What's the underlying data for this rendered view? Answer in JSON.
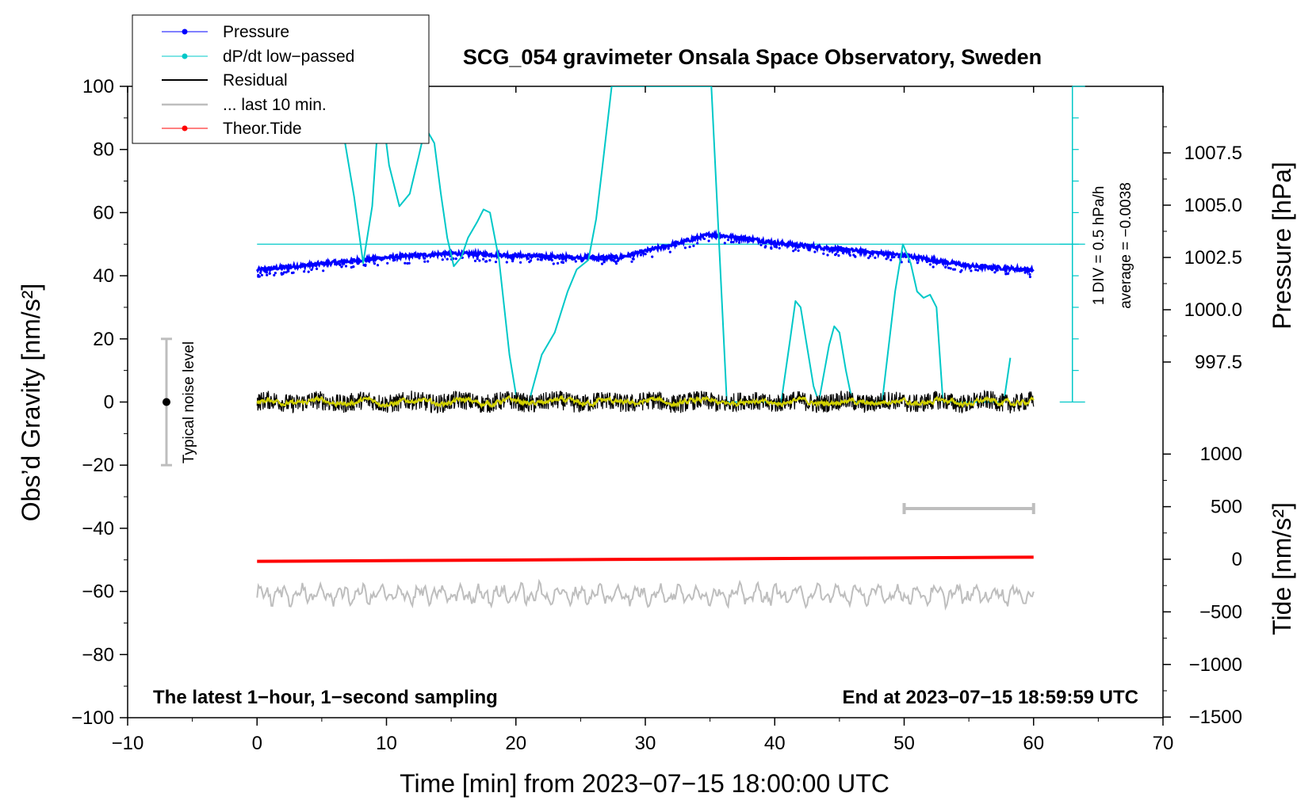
{
  "chart_data": {
    "type": "line",
    "title": "SCG_054 gravimeter Onsala Space Observatory, Sweden",
    "xlabel": "Time [min] from 2023−07−15 18:00:00 UTC",
    "ylabel_left": "Obs’d Gravity [nm/s²]",
    "ylabel_pressure": "Pressure [hPa]",
    "ylabel_tide": "Tide [nm/s²]",
    "xlim": [
      -10,
      70
    ],
    "ylim": [
      -100,
      100
    ],
    "x_ticks": [
      "−10",
      "0",
      "10",
      "20",
      "30",
      "40",
      "50",
      "60",
      "70"
    ],
    "y_ticks": [
      "100",
      "80",
      "60",
      "40",
      "20",
      "0",
      "−20",
      "−40",
      "−60",
      "−80",
      "−100"
    ],
    "pressure_axis": {
      "ticks": [
        "1007.5",
        "1005.0",
        "1002.5",
        "1000.0",
        "997.5"
      ],
      "values": [
        1007.5,
        1005.0,
        1002.5,
        1000.0,
        997.5
      ]
    },
    "tide_axis": {
      "ticks": [
        "1000",
        "500",
        "0",
        "−500",
        "−1000",
        "−1500"
      ],
      "values": [
        1000,
        500,
        0,
        -500,
        -1000,
        -1500
      ]
    },
    "legend": {
      "position": "top-left",
      "entries": [
        "Pressure",
        "dP/dt low−passed",
        "Residual",
        "... last 10 min.",
        "Theor.Tide"
      ]
    },
    "annotations": {
      "left_note": "The latest 1−hour, 1−second sampling",
      "right_note": "End at 2023−07−15 18:59:59 UTC",
      "noise_label": "Typical noise level",
      "dpdt_scale": "1 DIV = 0.5 hPa/h",
      "dpdt_average": "average = −0.0038"
    },
    "noise_level": {
      "x": -7,
      "center": 0,
      "range": [
        -20,
        20
      ]
    },
    "last10_bar": {
      "x": [
        50,
        60
      ]
    },
    "series": [
      {
        "name": "Pressure",
        "unit": "hPa",
        "color": "#0000ff",
        "x": [
          0,
          5,
          10,
          15,
          20,
          25,
          28,
          32,
          35,
          38,
          40,
          45,
          50,
          55,
          60
        ],
        "values": [
          1001.9,
          1002.2,
          1002.5,
          1002.7,
          1002.6,
          1002.5,
          1002.5,
          1003.1,
          1003.6,
          1003.4,
          1003.2,
          1002.9,
          1002.6,
          1002.1,
          1001.9
        ]
      },
      {
        "name": "dP/dt low−passed",
        "color": "#00c8c8",
        "baseline_y": 50,
        "x": [
          6.8,
          7.5,
          8.2,
          8.9,
          9.5,
          10.2,
          11,
          11.8,
          12.5,
          13,
          13.7,
          14.2,
          14.7,
          15.2,
          15.8,
          16.3,
          17,
          17.5,
          18,
          18.7,
          19.5,
          20.1,
          21,
          22,
          23,
          24,
          24.7,
          25.6,
          26.2,
          26.7,
          27.4,
          35.1,
          35.7,
          36.3,
          40.5,
          41.2,
          41.6,
          42,
          42.4,
          43,
          43.4,
          44.2,
          44.6,
          45,
          45.5,
          46,
          48.3,
          49.3,
          49.9,
          50.5,
          51,
          51.5,
          52,
          52.5,
          53,
          57.7,
          58.2
        ],
        "values": [
          82,
          65,
          44,
          62,
          98,
          75,
          62,
          66,
          78,
          87,
          82,
          66,
          52,
          43,
          46,
          52,
          57,
          61,
          60,
          45,
          15,
          0,
          0,
          15,
          22,
          35,
          42,
          45,
          58,
          75,
          100,
          100,
          50,
          0,
          0,
          20,
          32,
          30,
          20,
          5,
          0,
          18,
          24,
          22,
          10,
          0,
          0,
          35,
          50,
          44,
          35,
          33,
          34,
          30,
          0,
          0,
          14
        ]
      },
      {
        "name": "Residual",
        "color": "#000000",
        "x": [
          0,
          60
        ],
        "values": [
          0,
          0
        ],
        "amplitude": 3
      },
      {
        "name": "... last 10 min.",
        "color": "#bebebe",
        "x": [
          0,
          60
        ],
        "values": [
          -61,
          -61
        ],
        "amplitude": 4
      },
      {
        "name": "Theor.Tide",
        "unit": "nm/s²",
        "color": "#ff0000",
        "x": [
          0,
          60
        ],
        "values": [
          -20,
          20
        ]
      }
    ]
  }
}
